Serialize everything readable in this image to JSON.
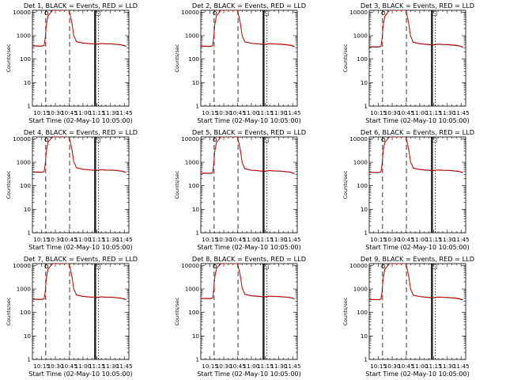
{
  "colors": {
    "events": "#000000",
    "lld": "#ff0000",
    "background": "#ffffff",
    "axis": "#000000"
  },
  "shared": {
    "xlabel": "Start Time (02-May-10 10:05:00)",
    "ylabel": "Counts/sec",
    "xtick_labels": [
      "10:15",
      "10:30",
      "10:45",
      "11:00",
      "11:15",
      "11:30",
      "11:45"
    ],
    "xtick_values_min": [
      10,
      25,
      40,
      55,
      70,
      85,
      100
    ],
    "ytick_labels": [
      "1",
      "10",
      "100",
      "1000",
      "10000"
    ],
    "ytick_values": [
      1,
      10,
      100,
      1000,
      10000
    ],
    "xlim_min": [
      0,
      105
    ],
    "ylim": [
      1,
      12000
    ],
    "yscale": "log",
    "markers": {
      "circle": "O",
      "square": "□"
    }
  },
  "chart_data": [
    {
      "type": "line",
      "title": "Det 1, BLACK = Events, RED = LLD",
      "series": [
        {
          "name": "Events",
          "color": "#000000",
          "x": [
            0,
            5,
            8,
            11,
            12.8,
            14,
            15.2,
            17,
            22,
            40,
            43,
            45,
            48,
            55,
            60,
            66,
            70,
            75,
            80,
            86,
            92,
            97,
            102
          ],
          "y": [
            360,
            360,
            355,
            360,
            380,
            800,
            3000,
            7000,
            12000,
            12000,
            3500,
            1000,
            550,
            480,
            460,
            440,
            430,
            460,
            445,
            440,
            420,
            400,
            350
          ]
        },
        {
          "name": "LLD",
          "color": "#ff0000",
          "x": [
            0,
            5,
            8,
            11,
            12.8,
            14,
            15.2,
            17,
            22,
            40,
            43,
            45,
            48,
            55,
            60,
            66,
            70,
            75,
            80,
            86,
            92,
            97,
            102
          ],
          "y": [
            370,
            370,
            365,
            370,
            390,
            820,
            3100,
            7200,
            12000,
            12000,
            3600,
            1020,
            560,
            490,
            470,
            450,
            440,
            470,
            455,
            450,
            430,
            410,
            360
          ]
        }
      ],
      "vlines_dashed": [
        14.5,
        40.5
      ],
      "vlines_solid": [
        67.8,
        68.8
      ],
      "vlines_dotted": [
        72
      ]
    },
    {
      "type": "line",
      "title": "Det 2, BLACK = Events, RED = LLD",
      "series": [
        {
          "name": "Events",
          "color": "#000000",
          "x": [
            0,
            5,
            8,
            11,
            12.8,
            14,
            15.2,
            17,
            22,
            40,
            43,
            45,
            48,
            55,
            60,
            66,
            70,
            75,
            80,
            86,
            92,
            97,
            102
          ],
          "y": [
            350,
            350,
            345,
            350,
            370,
            780,
            2900,
            6800,
            12000,
            12000,
            3400,
            980,
            540,
            470,
            450,
            430,
            420,
            450,
            435,
            430,
            410,
            390,
            340
          ]
        },
        {
          "name": "LLD",
          "color": "#ff0000",
          "x": [
            0,
            5,
            8,
            11,
            12.8,
            14,
            15.2,
            17,
            22,
            40,
            43,
            45,
            48,
            55,
            60,
            66,
            70,
            75,
            80,
            86,
            92,
            97,
            102
          ],
          "y": [
            360,
            360,
            355,
            360,
            380,
            800,
            3000,
            7000,
            12000,
            12000,
            3500,
            1000,
            550,
            480,
            460,
            440,
            430,
            460,
            445,
            440,
            420,
            400,
            350
          ]
        }
      ],
      "vlines_dashed": [
        14.5,
        40.5
      ],
      "vlines_solid": [
        67.8,
        68.8
      ],
      "vlines_dotted": [
        72
      ]
    },
    {
      "type": "line",
      "title": "Det 3, BLACK = Events, RED = LLD",
      "series": [
        {
          "name": "Events",
          "color": "#000000",
          "x": [
            0,
            5,
            8,
            11,
            12.8,
            14,
            15.2,
            17,
            22,
            40,
            43,
            45,
            48,
            55,
            60,
            66,
            70,
            75,
            80,
            86,
            92,
            97,
            102
          ],
          "y": [
            330,
            330,
            325,
            330,
            350,
            740,
            2800,
            6600,
            12000,
            12000,
            3300,
            950,
            520,
            450,
            430,
            410,
            400,
            430,
            415,
            410,
            390,
            370,
            320
          ]
        },
        {
          "name": "LLD",
          "color": "#ff0000",
          "x": [
            0,
            5,
            8,
            11,
            12.8,
            14,
            15.2,
            17,
            22,
            40,
            43,
            45,
            48,
            55,
            60,
            66,
            70,
            75,
            80,
            86,
            92,
            97,
            102
          ],
          "y": [
            340,
            340,
            335,
            340,
            360,
            760,
            2900,
            6800,
            12000,
            12000,
            3400,
            970,
            530,
            460,
            440,
            420,
            410,
            440,
            425,
            420,
            400,
            380,
            330
          ]
        }
      ],
      "vlines_dashed": [
        14.5,
        40.5
      ],
      "vlines_solid": [
        67.8,
        68.8
      ],
      "vlines_dotted": [
        72
      ]
    },
    {
      "type": "line",
      "title": "Det 4, BLACK = Events, RED = LLD",
      "series": [
        {
          "name": "Events",
          "color": "#000000",
          "x": [
            0,
            5,
            8,
            11,
            12.8,
            14,
            15.2,
            17,
            22,
            40,
            43,
            45,
            48,
            55,
            60,
            66,
            70,
            75,
            80,
            86,
            92,
            97,
            102
          ],
          "y": [
            380,
            380,
            375,
            380,
            400,
            840,
            3100,
            7300,
            12000,
            12000,
            3600,
            1050,
            580,
            500,
            480,
            460,
            450,
            480,
            465,
            460,
            440,
            420,
            370
          ]
        },
        {
          "name": "LLD",
          "color": "#ff0000",
          "x": [
            0,
            5,
            8,
            11,
            12.8,
            14,
            15.2,
            17,
            22,
            40,
            43,
            45,
            48,
            55,
            60,
            66,
            70,
            75,
            80,
            86,
            92,
            97,
            102
          ],
          "y": [
            390,
            390,
            385,
            390,
            410,
            860,
            3200,
            7500,
            12000,
            12000,
            3700,
            1070,
            590,
            510,
            490,
            470,
            460,
            490,
            475,
            470,
            450,
            430,
            380
          ]
        }
      ],
      "vlines_dashed": [
        14.5,
        40.5
      ],
      "vlines_solid": [
        67.8,
        68.8
      ],
      "vlines_dotted": [
        72
      ]
    },
    {
      "type": "line",
      "title": "Det 5, BLACK = Events, RED = LLD",
      "series": [
        {
          "name": "Events",
          "color": "#000000",
          "x": [
            0,
            5,
            8,
            11,
            12.8,
            14,
            15.2,
            17,
            22,
            40,
            43,
            45,
            48,
            55,
            60,
            66,
            70,
            75,
            80,
            86,
            92,
            97,
            102
          ],
          "y": [
            340,
            340,
            335,
            340,
            360,
            760,
            2900,
            6900,
            12000,
            12000,
            3400,
            970,
            530,
            460,
            440,
            420,
            410,
            440,
            425,
            420,
            400,
            380,
            330
          ]
        },
        {
          "name": "LLD",
          "color": "#ff0000",
          "x": [
            0,
            5,
            8,
            11,
            12.8,
            14,
            15.2,
            17,
            22,
            40,
            43,
            45,
            48,
            55,
            60,
            66,
            70,
            75,
            80,
            86,
            92,
            97,
            102
          ],
          "y": [
            350,
            350,
            345,
            350,
            370,
            780,
            3000,
            7100,
            12000,
            12000,
            3500,
            990,
            540,
            470,
            450,
            430,
            420,
            450,
            435,
            430,
            410,
            390,
            340
          ]
        }
      ],
      "vlines_dashed": [
        14.5,
        40.5
      ],
      "vlines_solid": [
        67.8,
        68.8
      ],
      "vlines_dotted": [
        72
      ]
    },
    {
      "type": "line",
      "title": "Det 6, BLACK = Events, RED = LLD",
      "series": [
        {
          "name": "Events",
          "color": "#000000",
          "x": [
            0,
            5,
            8,
            11,
            12.8,
            14,
            15.2,
            17,
            22,
            40,
            43,
            45,
            48,
            55,
            60,
            66,
            70,
            75,
            80,
            86,
            92,
            97,
            102
          ],
          "y": [
            370,
            370,
            365,
            370,
            390,
            820,
            3050,
            7100,
            12000,
            12000,
            3550,
            1020,
            560,
            490,
            470,
            450,
            440,
            470,
            455,
            450,
            430,
            410,
            360
          ]
        },
        {
          "name": "LLD",
          "color": "#ff0000",
          "x": [
            0,
            5,
            8,
            11,
            12.8,
            14,
            15.2,
            17,
            22,
            40,
            43,
            45,
            48,
            55,
            60,
            66,
            70,
            75,
            80,
            86,
            92,
            97,
            102
          ],
          "y": [
            380,
            380,
            375,
            380,
            400,
            840,
            3150,
            7300,
            12000,
            12000,
            3650,
            1040,
            570,
            500,
            480,
            460,
            450,
            480,
            465,
            460,
            440,
            420,
            370
          ]
        }
      ],
      "vlines_dashed": [
        14.5,
        40.5
      ],
      "vlines_solid": [
        67.8,
        68.8
      ],
      "vlines_dotted": [
        72
      ]
    },
    {
      "type": "line",
      "title": "Det 7, BLACK = Events, RED = LLD",
      "series": [
        {
          "name": "Events",
          "color": "#000000",
          "x": [
            0,
            5,
            8,
            11,
            12.8,
            14,
            15.2,
            17,
            22,
            40,
            43,
            45,
            48,
            55,
            60,
            66,
            70,
            75,
            80,
            86,
            92,
            97,
            102
          ],
          "y": [
            360,
            360,
            355,
            360,
            380,
            800,
            3000,
            7000,
            12000,
            12000,
            3500,
            1000,
            550,
            480,
            460,
            440,
            430,
            460,
            445,
            440,
            420,
            400,
            350
          ]
        },
        {
          "name": "LLD",
          "color": "#ff0000",
          "x": [
            0,
            5,
            8,
            11,
            12.8,
            14,
            15.2,
            17,
            22,
            40,
            43,
            45,
            48,
            55,
            60,
            66,
            70,
            75,
            80,
            86,
            92,
            97,
            102
          ],
          "y": [
            370,
            370,
            365,
            370,
            390,
            820,
            3100,
            7200,
            12000,
            12000,
            3600,
            1020,
            560,
            490,
            470,
            450,
            440,
            470,
            455,
            450,
            430,
            410,
            360
          ]
        }
      ],
      "vlines_dashed": [
        14.5,
        40.5
      ],
      "vlines_solid": [
        67.8,
        68.8
      ],
      "vlines_dotted": [
        72
      ]
    },
    {
      "type": "line",
      "title": "Det 8, BLACK = Events, RED = LLD",
      "series": [
        {
          "name": "Events",
          "color": "#000000",
          "x": [
            0,
            5,
            8,
            11,
            12.8,
            14,
            15.2,
            17,
            22,
            40,
            43,
            45,
            48,
            55,
            60,
            66,
            70,
            75,
            80,
            86,
            92,
            97,
            102
          ],
          "y": [
            390,
            390,
            385,
            390,
            410,
            860,
            3150,
            7400,
            12000,
            12000,
            3650,
            1060,
            590,
            510,
            490,
            470,
            460,
            490,
            475,
            470,
            450,
            430,
            380
          ]
        },
        {
          "name": "LLD",
          "color": "#ff0000",
          "x": [
            0,
            5,
            8,
            11,
            12.8,
            14,
            15.2,
            17,
            22,
            40,
            43,
            45,
            48,
            55,
            60,
            66,
            70,
            75,
            80,
            86,
            92,
            97,
            102
          ],
          "y": [
            400,
            400,
            395,
            400,
            420,
            880,
            3250,
            7600,
            12000,
            12000,
            3750,
            1080,
            600,
            520,
            500,
            480,
            470,
            500,
            485,
            480,
            460,
            440,
            390
          ]
        }
      ],
      "vlines_dashed": [
        14.5,
        40.5
      ],
      "vlines_solid": [
        67.8,
        68.8
      ],
      "vlines_dotted": [
        72
      ]
    },
    {
      "type": "line",
      "title": "Det 9, BLACK = Events, RED = LLD",
      "series": [
        {
          "name": "Events",
          "color": "#000000",
          "x": [
            0,
            5,
            8,
            11,
            12.8,
            14,
            15.2,
            17,
            22,
            40,
            43,
            45,
            48,
            55,
            60,
            66,
            70,
            75,
            80,
            86,
            92,
            97,
            102
          ],
          "y": [
            350,
            350,
            345,
            350,
            370,
            780,
            2950,
            6900,
            12000,
            12000,
            3450,
            990,
            540,
            470,
            450,
            430,
            420,
            450,
            435,
            430,
            410,
            390,
            340
          ]
        },
        {
          "name": "LLD",
          "color": "#ff0000",
          "x": [
            0,
            5,
            8,
            11,
            12.8,
            14,
            15.2,
            17,
            22,
            40,
            43,
            45,
            48,
            55,
            60,
            66,
            70,
            75,
            80,
            86,
            92,
            97,
            102
          ],
          "y": [
            360,
            360,
            355,
            360,
            380,
            800,
            3050,
            7100,
            12000,
            12000,
            3550,
            1010,
            550,
            480,
            460,
            440,
            430,
            460,
            445,
            440,
            420,
            400,
            350
          ]
        }
      ],
      "vlines_dashed": [
        14.5,
        40.5
      ],
      "vlines_solid": [
        67.8,
        68.8
      ],
      "vlines_dotted": [
        72
      ]
    }
  ]
}
